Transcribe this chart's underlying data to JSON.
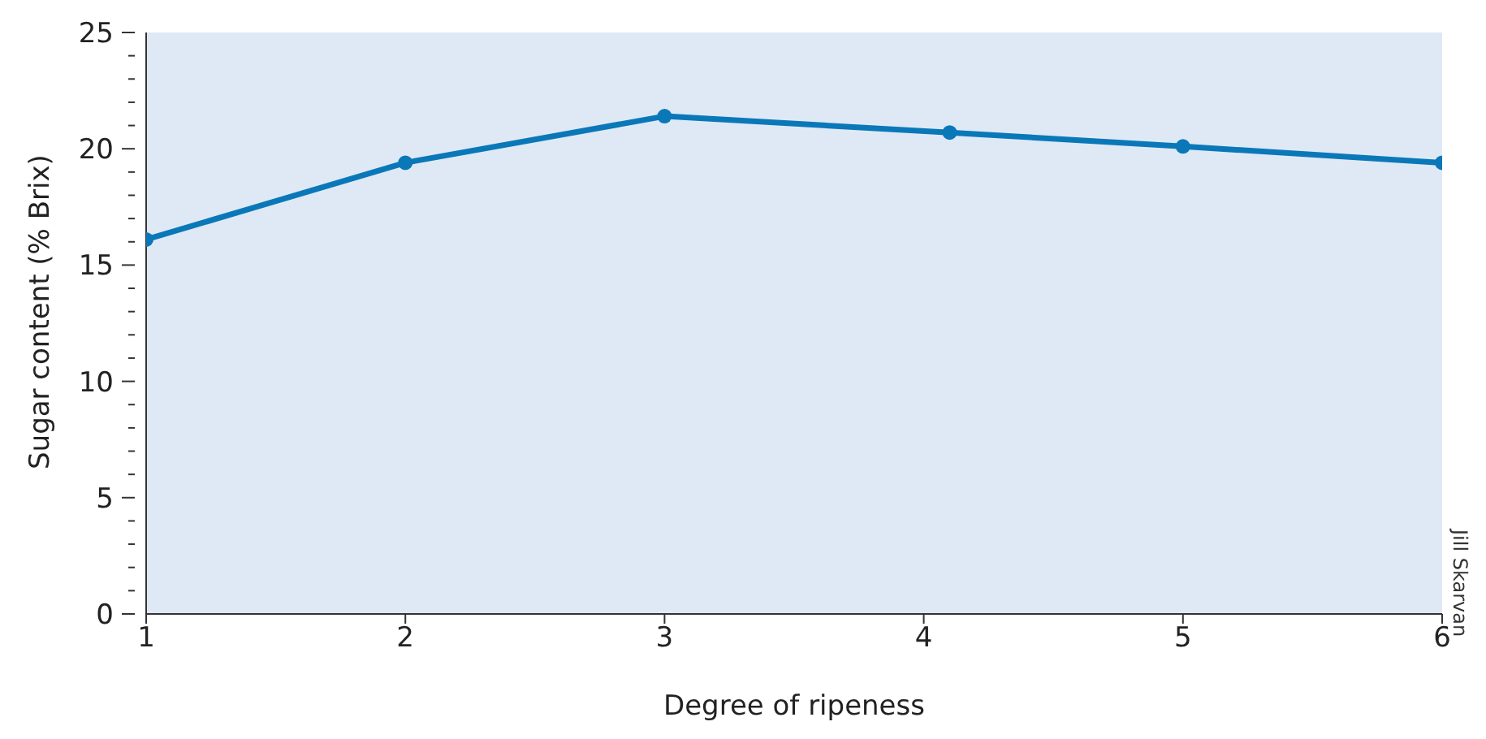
{
  "chart_data": {
    "type": "line",
    "xlabel": "Degree of ripeness",
    "ylabel": "Sugar content (% Brix)",
    "x": [
      1,
      2,
      3,
      4.1,
      5,
      6
    ],
    "series": [
      {
        "color": "#0a78b8",
        "values": [
          16.1,
          19.4,
          21.4,
          20.7,
          20.1,
          19.4
        ]
      }
    ],
    "xlim": [
      1,
      6
    ],
    "xticks": [
      1,
      2,
      3,
      4,
      5,
      6
    ],
    "ylim": [
      0,
      25
    ],
    "yticks": [
      0,
      {
        "value": 1,
        "label": null
      },
      {
        "value": 2,
        "label": null
      },
      {
        "value": 3,
        "label": null
      },
      {
        "value": 4,
        "label": null
      },
      5,
      {
        "value": 6,
        "label": null
      },
      {
        "value": 7,
        "label": null
      },
      {
        "value": 8,
        "label": null
      },
      {
        "value": 9,
        "label": null
      },
      10,
      {
        "value": 11,
        "label": null
      },
      {
        "value": 12,
        "label": null
      },
      {
        "value": 13,
        "label": null
      },
      {
        "value": 14,
        "label": null
      },
      15,
      {
        "value": 16,
        "label": null
      },
      {
        "value": 17,
        "label": null
      },
      {
        "value": 18,
        "label": null
      },
      {
        "value": 19,
        "label": null
      },
      20,
      {
        "value": 21,
        "label": null
      },
      {
        "value": 22,
        "label": null
      },
      {
        "value": 23,
        "label": null
      },
      {
        "value": 24,
        "label": null
      },
      25
    ],
    "marker": "circle",
    "line_style": "solid",
    "grid": false,
    "annotations": [
      "Jill Skarvan"
    ]
  }
}
